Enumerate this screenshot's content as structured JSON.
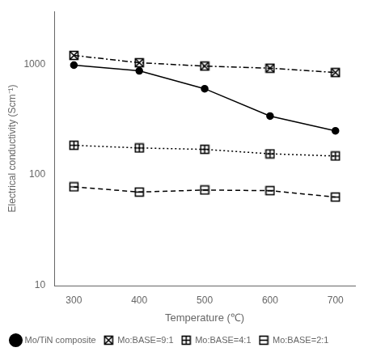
{
  "chart_data": {
    "type": "line",
    "xlabel": "Temperature (℃)",
    "ylabel": "Electrical conductivity (Scm⁻¹)",
    "x": [
      300,
      400,
      500,
      600,
      700
    ],
    "series": [
      {
        "name": "Mo/TiN composite",
        "color": "#000000",
        "marker": "circle",
        "line_style": "solid",
        "values": [
          980,
          870,
          600,
          340,
          250
        ]
      },
      {
        "name": "Mo:BASE=9:1",
        "color": "#000000",
        "marker": "x_square",
        "line_style": "dashdot",
        "values": [
          1200,
          1030,
          960,
          920,
          840
        ]
      },
      {
        "name": "Mo:BASE=4:1",
        "color": "#000000",
        "marker": "plus_square",
        "line_style": "dotted",
        "values": [
          185,
          175,
          170,
          155,
          148
        ]
      },
      {
        "name": "Mo:BASE=2:1",
        "color": "#000000",
        "marker": "minus_square",
        "line_style": "dashed",
        "values": [
          78,
          70,
          73,
          72,
          63
        ]
      }
    ],
    "xlim": [
      270,
      730
    ],
    "xticks": [
      300,
      400,
      500,
      600,
      700
    ],
    "ylim": [
      10,
      3000
    ],
    "yticks": [
      10,
      100,
      1000
    ],
    "log": "y",
    "grid": false,
    "legend": "lower left"
  }
}
